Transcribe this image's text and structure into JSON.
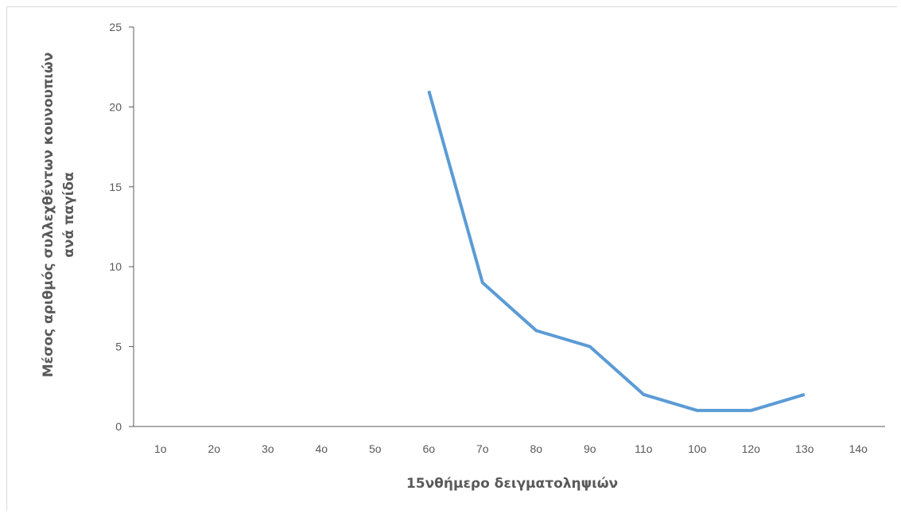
{
  "chart_data": {
    "type": "line",
    "title": "",
    "xlabel": "15νθήμερο δειγματοληψιών",
    "ylabel_lines": [
      "Μέσος αριθμός συλλεχθέντων κουνουπιών",
      "ανά παγίδα"
    ],
    "categories": [
      "1ο",
      "2ο",
      "3ο",
      "4ο",
      "5ο",
      "6ο",
      "7ο",
      "8ο",
      "9ο",
      "11ο",
      "10ο",
      "12ο",
      "13ο",
      "14ο"
    ],
    "series": [
      {
        "values": [
          null,
          null,
          null,
          null,
          null,
          21,
          9,
          6,
          5,
          2,
          1,
          1,
          2,
          null
        ],
        "color": "#5b9bd5"
      }
    ],
    "ylim": [
      0,
      25
    ],
    "yticks": [
      0,
      5,
      10,
      15,
      20,
      25
    ],
    "grid": false,
    "legend": "none"
  }
}
